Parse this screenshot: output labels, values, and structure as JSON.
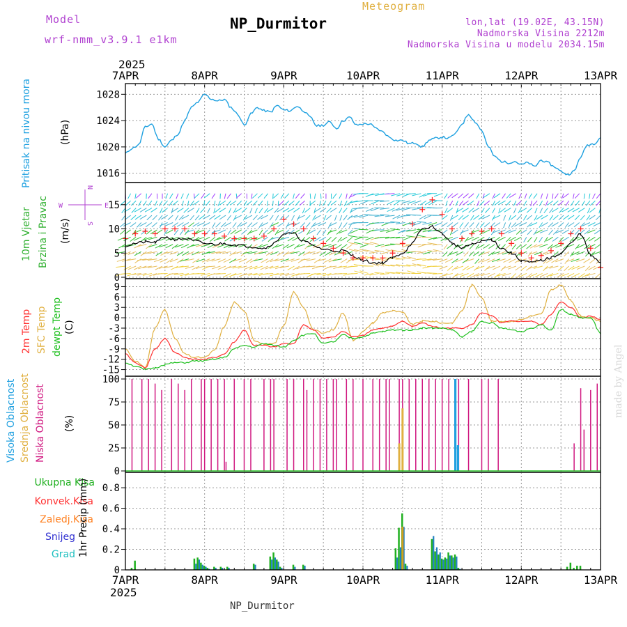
{
  "header": {
    "model_label": "Model",
    "model_name": "wrf-nmm_v3.9.1 e1km",
    "title": "NP_Durmitor",
    "meteogram_label": "Meteogram",
    "coords": "lon,lat (19.02E, 43.15N)",
    "altitude": "Nadmorska Visina 2212m",
    "model_altitude": "Nadmorska Visina u modelu 2034.15m",
    "footer_name": "NP_Durmitor",
    "credit": "made by Angel"
  },
  "colors": {
    "pressure": "#1da0e0",
    "wind_speed": "#000000",
    "gust": "#ff2020",
    "temp_2m": "#ff3030",
    "temp_sfc": "#e0b040",
    "dewpoint": "#20c020",
    "cloud_high": "#20a0e0",
    "cloud_mid": "#e0b040",
    "cloud_low": "#d01880",
    "precip_total": "#20b020",
    "precip_conv": "#ff3030",
    "precip_frz": "#ff8020",
    "snow": "#3030d0",
    "hail": "#20c0c0",
    "model_text": "#b040d0",
    "meteogram_text": "#e0b040",
    "info_text": "#b040d0",
    "credit_text": "#d8d8d8"
  },
  "time_axis": {
    "year": "2025",
    "ticks": [
      "7APR",
      "8APR",
      "9APR",
      "10APR",
      "11APR",
      "12APR",
      "13APR"
    ],
    "hours_total": 144
  },
  "chart_data": [
    {
      "type": "line",
      "name": "pressure",
      "ylabel": [
        "Pritisak na nivou mora",
        "(hPa)"
      ],
      "yticks": [
        1016,
        1020,
        1024,
        1028
      ],
      "ylim": [
        1014.8,
        1029.2
      ],
      "x_hours": [
        0,
        2,
        4,
        6,
        8,
        10,
        12,
        14,
        16,
        18,
        20,
        22,
        24,
        26,
        28,
        30,
        32,
        34,
        36,
        38,
        40,
        42,
        44,
        46,
        48,
        50,
        52,
        54,
        56,
        58,
        60,
        62,
        64,
        66,
        68,
        70,
        72,
        74,
        76,
        78,
        80,
        82,
        84,
        86,
        88,
        90,
        92,
        94,
        96,
        98,
        100,
        102,
        104,
        106,
        108,
        110,
        112,
        114,
        116,
        118,
        120,
        122,
        124,
        126,
        128,
        130,
        132,
        134,
        136,
        138,
        140,
        142,
        144
      ],
      "values": [
        1019.0,
        1019.8,
        1020.3,
        1023.0,
        1023.5,
        1021.2,
        1020.0,
        1021.0,
        1022.0,
        1024.0,
        1026.0,
        1026.8,
        1028.0,
        1027.3,
        1027.0,
        1027.2,
        1026.0,
        1025.0,
        1023.3,
        1025.0,
        1026.0,
        1025.5,
        1025.3,
        1026.3,
        1025.6,
        1025.5,
        1026.2,
        1025.5,
        1024.5,
        1023.2,
        1023.3,
        1023.8,
        1022.8,
        1024.0,
        1024.5,
        1023.3,
        1023.5,
        1023.5,
        1022.8,
        1022.3,
        1021.5,
        1021.0,
        1021.0,
        1020.5,
        1020.6,
        1020.0,
        1021.0,
        1021.3,
        1021.5,
        1021.3,
        1022.0,
        1023.5,
        1025.0,
        1023.8,
        1022.5,
        1020.0,
        1018.5,
        1017.8,
        1017.6,
        1017.8,
        1017.3,
        1017.6,
        1017.0,
        1018.0,
        1017.6,
        1017.0,
        1016.3,
        1015.8,
        1016.3,
        1018.5,
        1020.3,
        1020.5,
        1021.4
      ]
    },
    {
      "type": "line",
      "name": "wind",
      "ylabel": [
        "10m Vjetar",
        "Brzina i Pravac",
        "(m/s)"
      ],
      "compass": [
        "W",
        "E",
        "N",
        "S"
      ],
      "yticks": [
        0,
        5,
        10,
        15
      ],
      "ylim": [
        0,
        19
      ],
      "x_hours": [
        0,
        3,
        6,
        9,
        12,
        15,
        18,
        21,
        24,
        27,
        30,
        33,
        36,
        39,
        42,
        45,
        48,
        51,
        54,
        57,
        60,
        63,
        66,
        69,
        72,
        75,
        78,
        81,
        84,
        87,
        90,
        93,
        96,
        99,
        102,
        105,
        108,
        111,
        114,
        117,
        120,
        123,
        126,
        129,
        132,
        135,
        138,
        141,
        144
      ],
      "speed": [
        6.5,
        7.0,
        7.3,
        7.2,
        8.3,
        7.8,
        8.0,
        7.5,
        7.0,
        6.8,
        7.0,
        6.7,
        6.5,
        6.3,
        6.0,
        7.0,
        9.0,
        9.0,
        7.5,
        6.5,
        5.8,
        5.5,
        5.5,
        4.5,
        3.5,
        3.0,
        3.0,
        4.0,
        5.0,
        7.0,
        10.0,
        10.5,
        9.0,
        7.0,
        6.0,
        6.8,
        7.5,
        7.8,
        6.0,
        5.0,
        3.5,
        3.0,
        3.5,
        4.0,
        5.0,
        7.0,
        9.0,
        4.5,
        3.0
      ],
      "gust": [
        8.0,
        9.0,
        9.5,
        9.0,
        10.0,
        10.0,
        10.0,
        9.0,
        9.0,
        9.0,
        8.5,
        8.0,
        8.0,
        8.0,
        8.5,
        10.0,
        12.0,
        11.0,
        10.0,
        8.0,
        7.0,
        6.0,
        5.0,
        4.0,
        4.0,
        4.0,
        4.0,
        5.0,
        7.0,
        11.0,
        14.0,
        16.0,
        13.0,
        10.0,
        8.0,
        9.0,
        9.5,
        10.0,
        9.0,
        7.0,
        5.0,
        4.0,
        4.5,
        5.5,
        7.0,
        9.0,
        10.0,
        6.0,
        2.0
      ]
    },
    {
      "type": "line",
      "name": "temperature",
      "ylabel": [
        "2m Temp",
        "SFC Temp",
        "dewpt Temp",
        "(C)"
      ],
      "yticks": [
        -15,
        -12,
        -9,
        -6,
        -3,
        0,
        3,
        6,
        9
      ],
      "ylim": [
        -16.5,
        10.5
      ],
      "x_hours": [
        0,
        3,
        6,
        9,
        12,
        15,
        18,
        21,
        24,
        27,
        30,
        33,
        36,
        39,
        42,
        45,
        48,
        51,
        54,
        57,
        60,
        63,
        66,
        69,
        72,
        75,
        78,
        81,
        84,
        87,
        90,
        93,
        96,
        99,
        102,
        105,
        108,
        111,
        114,
        117,
        120,
        123,
        126,
        129,
        132,
        135,
        138,
        141,
        144
      ],
      "t2m": [
        -10.5,
        -13.0,
        -14.5,
        -9.0,
        -6.0,
        -10.0,
        -11.5,
        -12.0,
        -12.0,
        -11.5,
        -10.5,
        -7.0,
        -3.5,
        -8.0,
        -8.0,
        -8.5,
        -7.5,
        -7.5,
        -2.0,
        -3.5,
        -6.0,
        -5.5,
        -4.0,
        -5.5,
        -5.0,
        -3.5,
        -3.0,
        -2.5,
        -1.0,
        -2.5,
        -1.5,
        -2.5,
        -3.0,
        -3.0,
        -3.0,
        -2.0,
        1.5,
        0.5,
        -1.5,
        -1.0,
        -1.0,
        -1.0,
        -2.0,
        1.0,
        4.5,
        3.0,
        0.0,
        0.5,
        -0.5
      ],
      "tsfc": [
        -9.0,
        -12.5,
        -14.5,
        -3.0,
        2.5,
        -6.0,
        -10.5,
        -11.5,
        -11.5,
        -9.5,
        -2.5,
        4.5,
        2.0,
        -6.5,
        -7.5,
        -7.5,
        -2.5,
        7.5,
        3.0,
        -3.5,
        -4.5,
        -3.5,
        1.5,
        -6.5,
        -4.0,
        -1.5,
        1.5,
        2.0,
        1.5,
        -2.0,
        -1.0,
        -1.0,
        -1.5,
        -1.5,
        2.0,
        9.5,
        6.0,
        -1.0,
        -1.0,
        -1.0,
        -0.5,
        0.5,
        1.0,
        8.0,
        9.5,
        5.0,
        0.5,
        0.0,
        -1.0
      ],
      "dewpt": [
        -13.0,
        -14.0,
        -15.0,
        -14.5,
        -13.5,
        -13.0,
        -13.0,
        -12.5,
        -12.5,
        -12.0,
        -11.5,
        -9.0,
        -8.0,
        -8.5,
        -7.5,
        -8.0,
        -8.5,
        -6.5,
        -5.0,
        -4.5,
        -7.5,
        -7.0,
        -5.0,
        -6.0,
        -5.5,
        -4.5,
        -4.0,
        -3.5,
        -3.5,
        -3.5,
        -3.0,
        -3.0,
        -3.0,
        -3.5,
        -5.5,
        -4.0,
        -1.0,
        -1.5,
        -3.0,
        -3.5,
        -4.0,
        -3.0,
        -2.0,
        -3.5,
        2.5,
        1.0,
        0.0,
        0.0,
        -4.5
      ]
    },
    {
      "type": "bar",
      "name": "clouds",
      "ylabel": [
        "Visoka Oblacnost",
        "Srednja Oblacnost",
        "Niska Oblacnost",
        "(%)"
      ],
      "yticks": [
        0,
        25,
        50,
        75,
        100
      ],
      "ylim": [
        0,
        100
      ],
      "low_hours": [
        2,
        5,
        7,
        9,
        11,
        14,
        16,
        18,
        20,
        23,
        24,
        26,
        28,
        30,
        30.5,
        33,
        36,
        38,
        42,
        44,
        45,
        49,
        51,
        54,
        55,
        57,
        59,
        61,
        63,
        64,
        67,
        69,
        72,
        75,
        77,
        79,
        80,
        83,
        84,
        86,
        88,
        90,
        92,
        94,
        96,
        98,
        100,
        101,
        104,
        108,
        110,
        113,
        136,
        138,
        139,
        141,
        143
      ],
      "low_values": [
        100,
        100,
        100,
        95,
        88,
        100,
        95,
        88,
        100,
        100,
        100,
        100,
        100,
        100,
        10,
        100,
        100,
        100,
        100,
        100,
        100,
        100,
        100,
        100,
        88,
        100,
        100,
        100,
        100,
        100,
        100,
        100,
        100,
        100,
        100,
        100,
        100,
        100,
        100,
        100,
        100,
        100,
        100,
        100,
        100,
        100,
        100,
        100,
        100,
        100,
        100,
        100,
        30,
        90,
        45,
        88,
        95
      ],
      "mid_hours": [
        83,
        84
      ],
      "mid_values": [
        30,
        68
      ],
      "high_hours": [
        100,
        100.8
      ],
      "high_values": [
        100,
        28
      ]
    },
    {
      "type": "bar",
      "name": "precip",
      "ylabel": [
        "Ukupna Kisa",
        "Konvek.Kisa",
        "Zaledj.Kisa",
        "Snijeg",
        "Grad",
        "1hr Precip (mm)"
      ],
      "yticks": [
        0,
        0.2,
        0.4,
        0.6,
        0.8
      ],
      "ylim": [
        0,
        0.95
      ],
      "hours": [
        2,
        3,
        21,
        22,
        23,
        24,
        25,
        27,
        29,
        31,
        39,
        44,
        45,
        46,
        47,
        51,
        54,
        82,
        83,
        84,
        85,
        93,
        94,
        95,
        96,
        97,
        98,
        99,
        100,
        101,
        134,
        135,
        136,
        137,
        138
      ],
      "total": [
        0.02,
        0.09,
        0.11,
        0.12,
        0.07,
        0.04,
        0.02,
        0.03,
        0.03,
        0.03,
        0.06,
        0.13,
        0.17,
        0.1,
        0.03,
        0.05,
        0.05,
        0.21,
        0.41,
        0.55,
        0.06,
        0.3,
        0.18,
        0.15,
        0.11,
        0.12,
        0.17,
        0.14,
        0.15,
        0.02,
        0.03,
        0.07,
        0.02,
        0.04,
        0.04
      ],
      "snow": [
        0.0,
        0.0,
        0.06,
        0.1,
        0.05,
        0.03,
        0.01,
        0.02,
        0.02,
        0.02,
        0.05,
        0.1,
        0.12,
        0.08,
        0.02,
        0.03,
        0.04,
        0.12,
        0.22,
        0.42,
        0.04,
        0.33,
        0.22,
        0.17,
        0.1,
        0.11,
        0.14,
        0.12,
        0.13,
        0.01,
        0.0,
        0.0,
        0.0,
        0.0,
        0.0
      ]
    }
  ]
}
